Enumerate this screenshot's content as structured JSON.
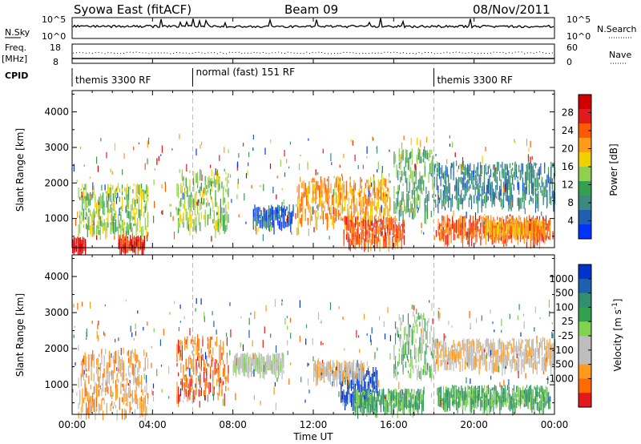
{
  "header": {
    "title": "Syowa East (fitACF)",
    "beam": "Beam 09",
    "date": "08/Nov/2011"
  },
  "noise_panel": {
    "left_label": "N.Sky",
    "left_ticks": [
      "10^5",
      "10^0"
    ],
    "right_label": "N.Search",
    "right_ticks": [
      "10^5",
      "10^0"
    ]
  },
  "freq_panel": {
    "left_label_line1": "Freq.",
    "left_label_line2": "[MHz]",
    "left_ticks": [
      "18",
      "8"
    ],
    "right_label": "Nave",
    "right_ticks": [
      "60",
      "0"
    ]
  },
  "cpid": {
    "label": "CPID",
    "segments": [
      {
        "label": "themis 3300 RF",
        "start": "00:00",
        "end": "06:00"
      },
      {
        "label": "normal (fast) 151 RF",
        "start": "06:00",
        "end": "18:00"
      },
      {
        "label": "themis 3300 RF",
        "start": "18:00",
        "end": "24:00"
      }
    ]
  },
  "colors": {
    "power_scale": [
      "#0033ff",
      "#1f5fb0",
      "#3a8a80",
      "#33a050",
      "#8fd14f",
      "#f0d000",
      "#ff9a1a",
      "#ff5a00",
      "#e31a1c",
      "#d00000"
    ],
    "velocity_scale": [
      "#e31a1c",
      "#ff6a00",
      "#ff9a1a",
      "#bdbdbd",
      "#bdbdbd",
      "#7fd34e",
      "#33a050",
      "#2f8f6e",
      "#1f5fb0",
      "#0033cc"
    ],
    "mode_change_line": "#bbbbbb"
  },
  "chart_data": [
    {
      "type": "heatmap",
      "panel": "power",
      "title": "",
      "xlabel": "Time UT",
      "ylabel": "Slant Range [km]",
      "xlim": [
        "00:00",
        "24:00"
      ],
      "ylim": [
        180,
        4600
      ],
      "x_ticks": [
        "00:00",
        "04:00",
        "08:00",
        "12:00",
        "16:00",
        "20:00",
        "00:00"
      ],
      "y_ticks": [
        1000,
        2000,
        3000,
        4000
      ],
      "colorbar": {
        "label": "Power [dB]",
        "min": 0,
        "max": 32,
        "ticks": [
          4,
          8,
          12,
          16,
          20,
          24,
          28
        ]
      },
      "echo_regions": [
        {
          "t0": 0.0,
          "t1": 0.7,
          "r0": 200,
          "r1": 500,
          "level": 9
        },
        {
          "t0": 0.3,
          "t1": 3.8,
          "r0": 700,
          "r1": 2000,
          "level": 4
        },
        {
          "t0": 2.3,
          "t1": 3.6,
          "r0": 250,
          "r1": 550,
          "level": 8
        },
        {
          "t0": 5.2,
          "t1": 7.8,
          "r0": 800,
          "r1": 2400,
          "level": 4
        },
        {
          "t0": 9.0,
          "t1": 11.0,
          "r0": 900,
          "r1": 1400,
          "level": 1
        },
        {
          "t0": 11.2,
          "t1": 15.8,
          "r0": 1000,
          "r1": 2200,
          "level": 6
        },
        {
          "t0": 13.5,
          "t1": 16.5,
          "r0": 400,
          "r1": 1100,
          "level": 7
        },
        {
          "t0": 16.0,
          "t1": 18.0,
          "r0": 1200,
          "r1": 3000,
          "level": 3
        },
        {
          "t0": 18.0,
          "t1": 24.0,
          "r0": 1500,
          "r1": 2600,
          "level": 2
        },
        {
          "t0": 18.2,
          "t1": 23.8,
          "r0": 500,
          "r1": 1100,
          "level": 7
        },
        {
          "t0": 20.5,
          "t1": 23.5,
          "r0": 700,
          "r1": 1000,
          "level": 6
        }
      ]
    },
    {
      "type": "heatmap",
      "panel": "velocity",
      "title": "",
      "xlabel": "Time UT",
      "ylabel": "Slant Range [km]",
      "xlim": [
        "00:00",
        "24:00"
      ],
      "ylim": [
        180,
        4600
      ],
      "x_ticks": [
        "00:00",
        "04:00",
        "08:00",
        "12:00",
        "16:00",
        "20:00",
        "00:00"
      ],
      "y_ticks": [
        1000,
        2000,
        3000,
        4000
      ],
      "colorbar": {
        "label": "Velocity [m s^-1]",
        "ticks": [
          "1000",
          "500",
          "100",
          "25",
          "-25",
          "-100",
          "-500",
          "-1000"
        ]
      },
      "echo_regions": [
        {
          "t0": 0.3,
          "t1": 3.8,
          "r0": 250,
          "r1": 2000,
          "level": 2
        },
        {
          "t0": 5.2,
          "t1": 7.8,
          "r0": 700,
          "r1": 2400,
          "level": 1
        },
        {
          "t0": 8.0,
          "t1": 10.5,
          "r0": 1500,
          "r1": 1900,
          "level": 4
        },
        {
          "t0": 13.3,
          "t1": 15.2,
          "r0": 600,
          "r1": 1500,
          "level": 9
        },
        {
          "t0": 12.0,
          "t1": 14.5,
          "r0": 1300,
          "r1": 1700,
          "level": 3
        },
        {
          "t0": 14.0,
          "t1": 17.5,
          "r0": 400,
          "r1": 900,
          "level": 6
        },
        {
          "t0": 16.0,
          "t1": 18.0,
          "r0": 1300,
          "r1": 3000,
          "level": 5
        },
        {
          "t0": 18.0,
          "t1": 24.0,
          "r0": 1600,
          "r1": 2300,
          "level": 3
        },
        {
          "t0": 18.2,
          "t1": 23.8,
          "r0": 500,
          "r1": 1000,
          "level": 6
        }
      ]
    }
  ]
}
